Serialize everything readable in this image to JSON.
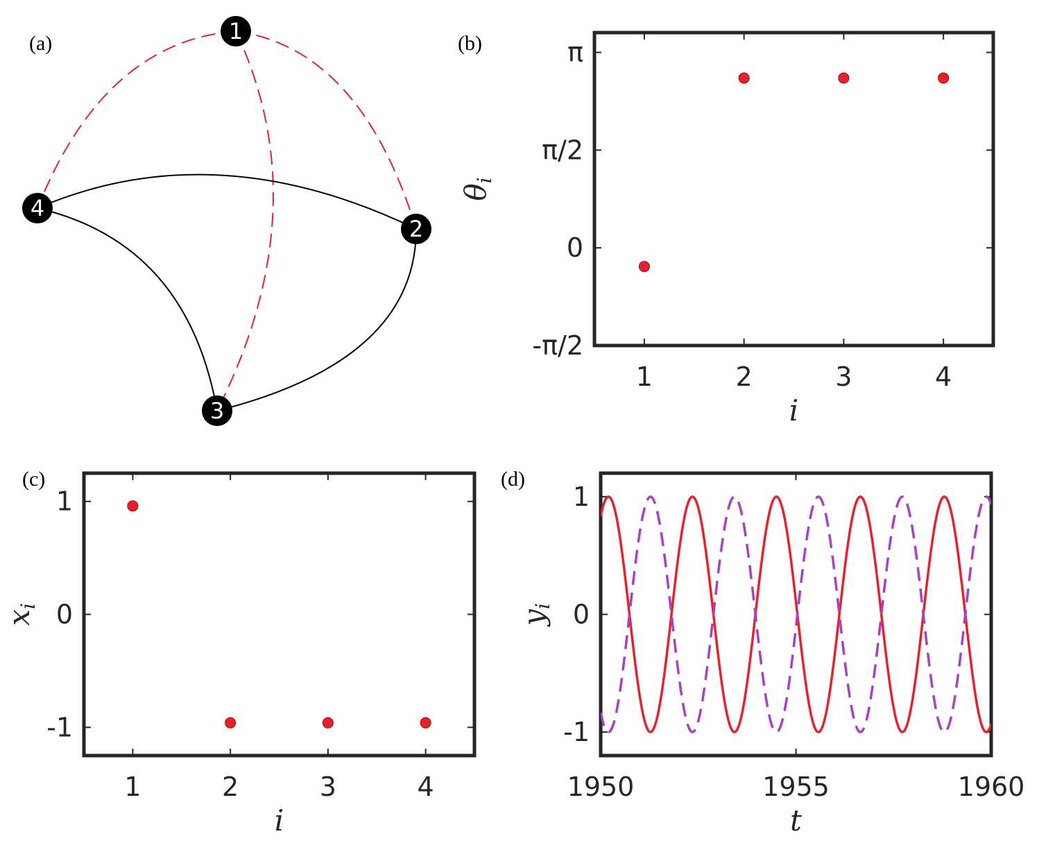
{
  "panels": {
    "a": {
      "label": "(a)"
    },
    "b": {
      "label": "(b)"
    },
    "c": {
      "label": "(c)"
    },
    "d": {
      "label": "(d)"
    }
  },
  "network": {
    "nodes": [
      {
        "id": "1",
        "label": "1"
      },
      {
        "id": "2",
        "label": "2"
      },
      {
        "id": "3",
        "label": "3"
      },
      {
        "id": "4",
        "label": "4"
      }
    ],
    "edges": [
      {
        "from": "1",
        "to": "4",
        "style": "dashed",
        "color": "#e8202a"
      },
      {
        "from": "1",
        "to": "2",
        "style": "dashed",
        "color": "#e8202a"
      },
      {
        "from": "1",
        "to": "3",
        "style": "dashed",
        "color": "#e8202a"
      },
      {
        "from": "4",
        "to": "2",
        "style": "solid",
        "color": "#000000"
      },
      {
        "from": "4",
        "to": "3",
        "style": "solid",
        "color": "#000000"
      },
      {
        "from": "3",
        "to": "2",
        "style": "solid",
        "color": "#000000"
      }
    ]
  },
  "chart_data": [
    {
      "panel": "b",
      "type": "scatter",
      "x": [
        1,
        2,
        3,
        4
      ],
      "y": [
        -0.3,
        2.73,
        2.73,
        2.73
      ],
      "xlabel": "i",
      "ylabel": "θ",
      "ylabel_sub": "i",
      "xlim": [
        0.5,
        4.5
      ],
      "ylim": [
        -1.5708,
        3.46
      ],
      "xticks": [
        1,
        2,
        3,
        4
      ],
      "xtick_labels": [
        "1",
        "2",
        "3",
        "4"
      ],
      "yticks": [
        -1.5708,
        0,
        1.5708,
        3.14159
      ],
      "ytick_labels": [
        "-π/2",
        "0",
        "π/2",
        "π"
      ],
      "marker_color": "#e8202a",
      "grid": false
    },
    {
      "panel": "c",
      "type": "scatter",
      "x": [
        1,
        2,
        3,
        4
      ],
      "y": [
        0.96,
        -0.96,
        -0.96,
        -0.96
      ],
      "xlabel": "i",
      "ylabel": "x",
      "ylabel_sub": "i",
      "xlim": [
        0.5,
        4.5
      ],
      "ylim": [
        -1.25,
        1.25
      ],
      "xticks": [
        1,
        2,
        3,
        4
      ],
      "xtick_labels": [
        "1",
        "2",
        "3",
        "4"
      ],
      "yticks": [
        -1,
        0,
        1
      ],
      "ytick_labels": [
        "-1",
        "0",
        "1"
      ],
      "marker_color": "#e8202a",
      "grid": false
    },
    {
      "panel": "d",
      "type": "line",
      "xlabel": "t",
      "ylabel": "y",
      "ylabel_sub": "i",
      "xlim": [
        1950,
        1960
      ],
      "ylim": [
        -1.2,
        1.2
      ],
      "xticks": [
        1950,
        1955,
        1960
      ],
      "xtick_labels": [
        "1950",
        "1955",
        "1960"
      ],
      "yticks": [
        -1,
        0,
        1
      ],
      "ytick_labels": [
        "-1",
        "0",
        "1"
      ],
      "series": [
        {
          "style": "solid",
          "color": "#e8202a",
          "amplitude": 1,
          "period": 2.15,
          "phase_shift": 0.2
        },
        {
          "style": "dashed",
          "color": "#a93fc7",
          "amplitude": 1,
          "period": 2.15,
          "phase_shift": 1.275
        }
      ],
      "grid": false
    }
  ]
}
